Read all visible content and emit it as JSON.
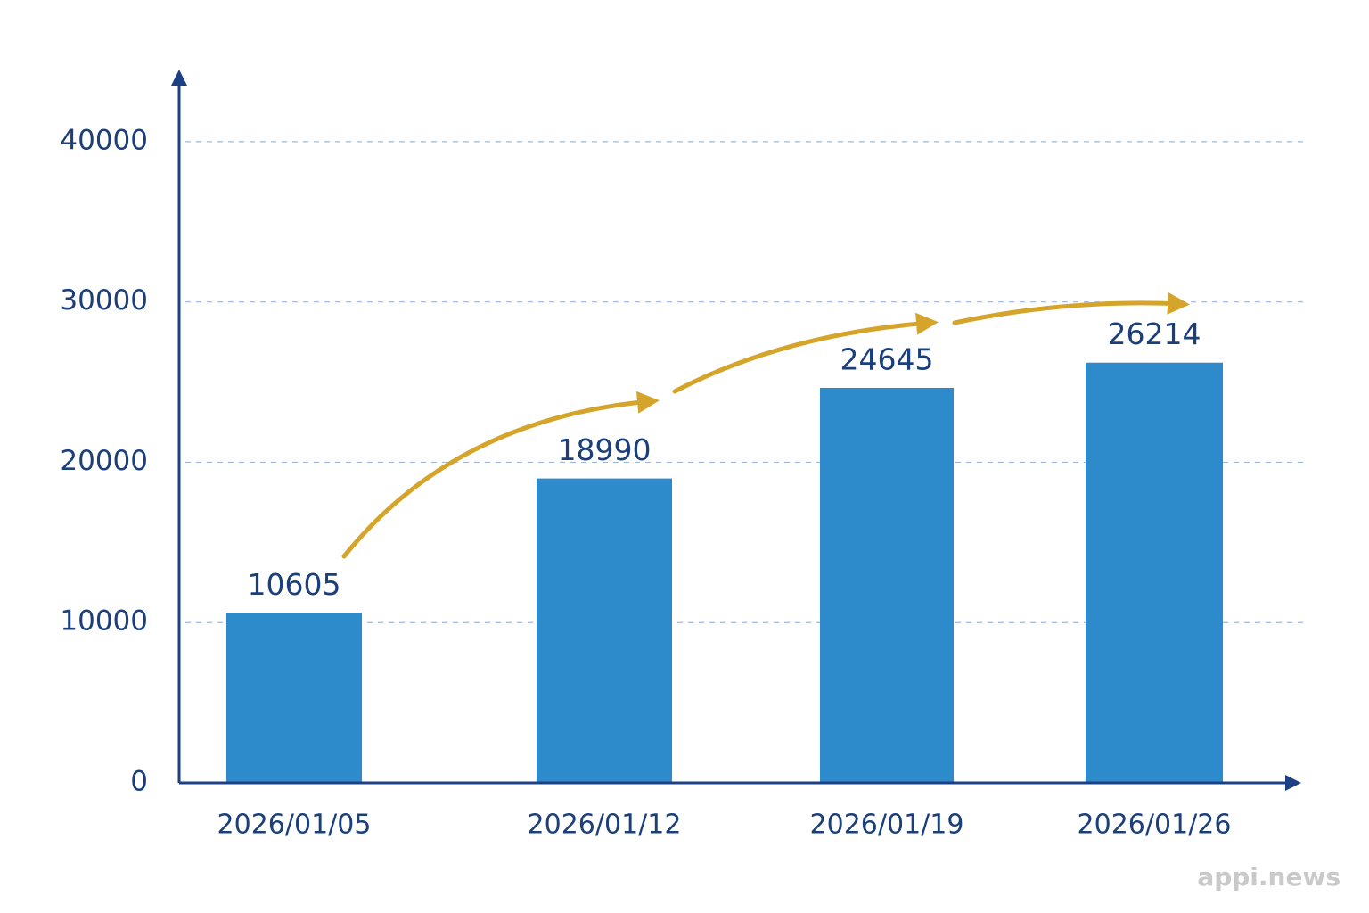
{
  "chart_data": {
    "type": "bar",
    "categories": [
      "2026/01/05",
      "2026/01/12",
      "2026/01/19",
      "2026/01/26"
    ],
    "values": [
      10605,
      18990,
      24645,
      26214
    ],
    "color": "#2e8bcb",
    "ylim": [
      0,
      44500
    ],
    "yticks": [
      0,
      10000,
      20000,
      30000,
      40000
    ],
    "grid": true
  },
  "watermark": "appi.news"
}
